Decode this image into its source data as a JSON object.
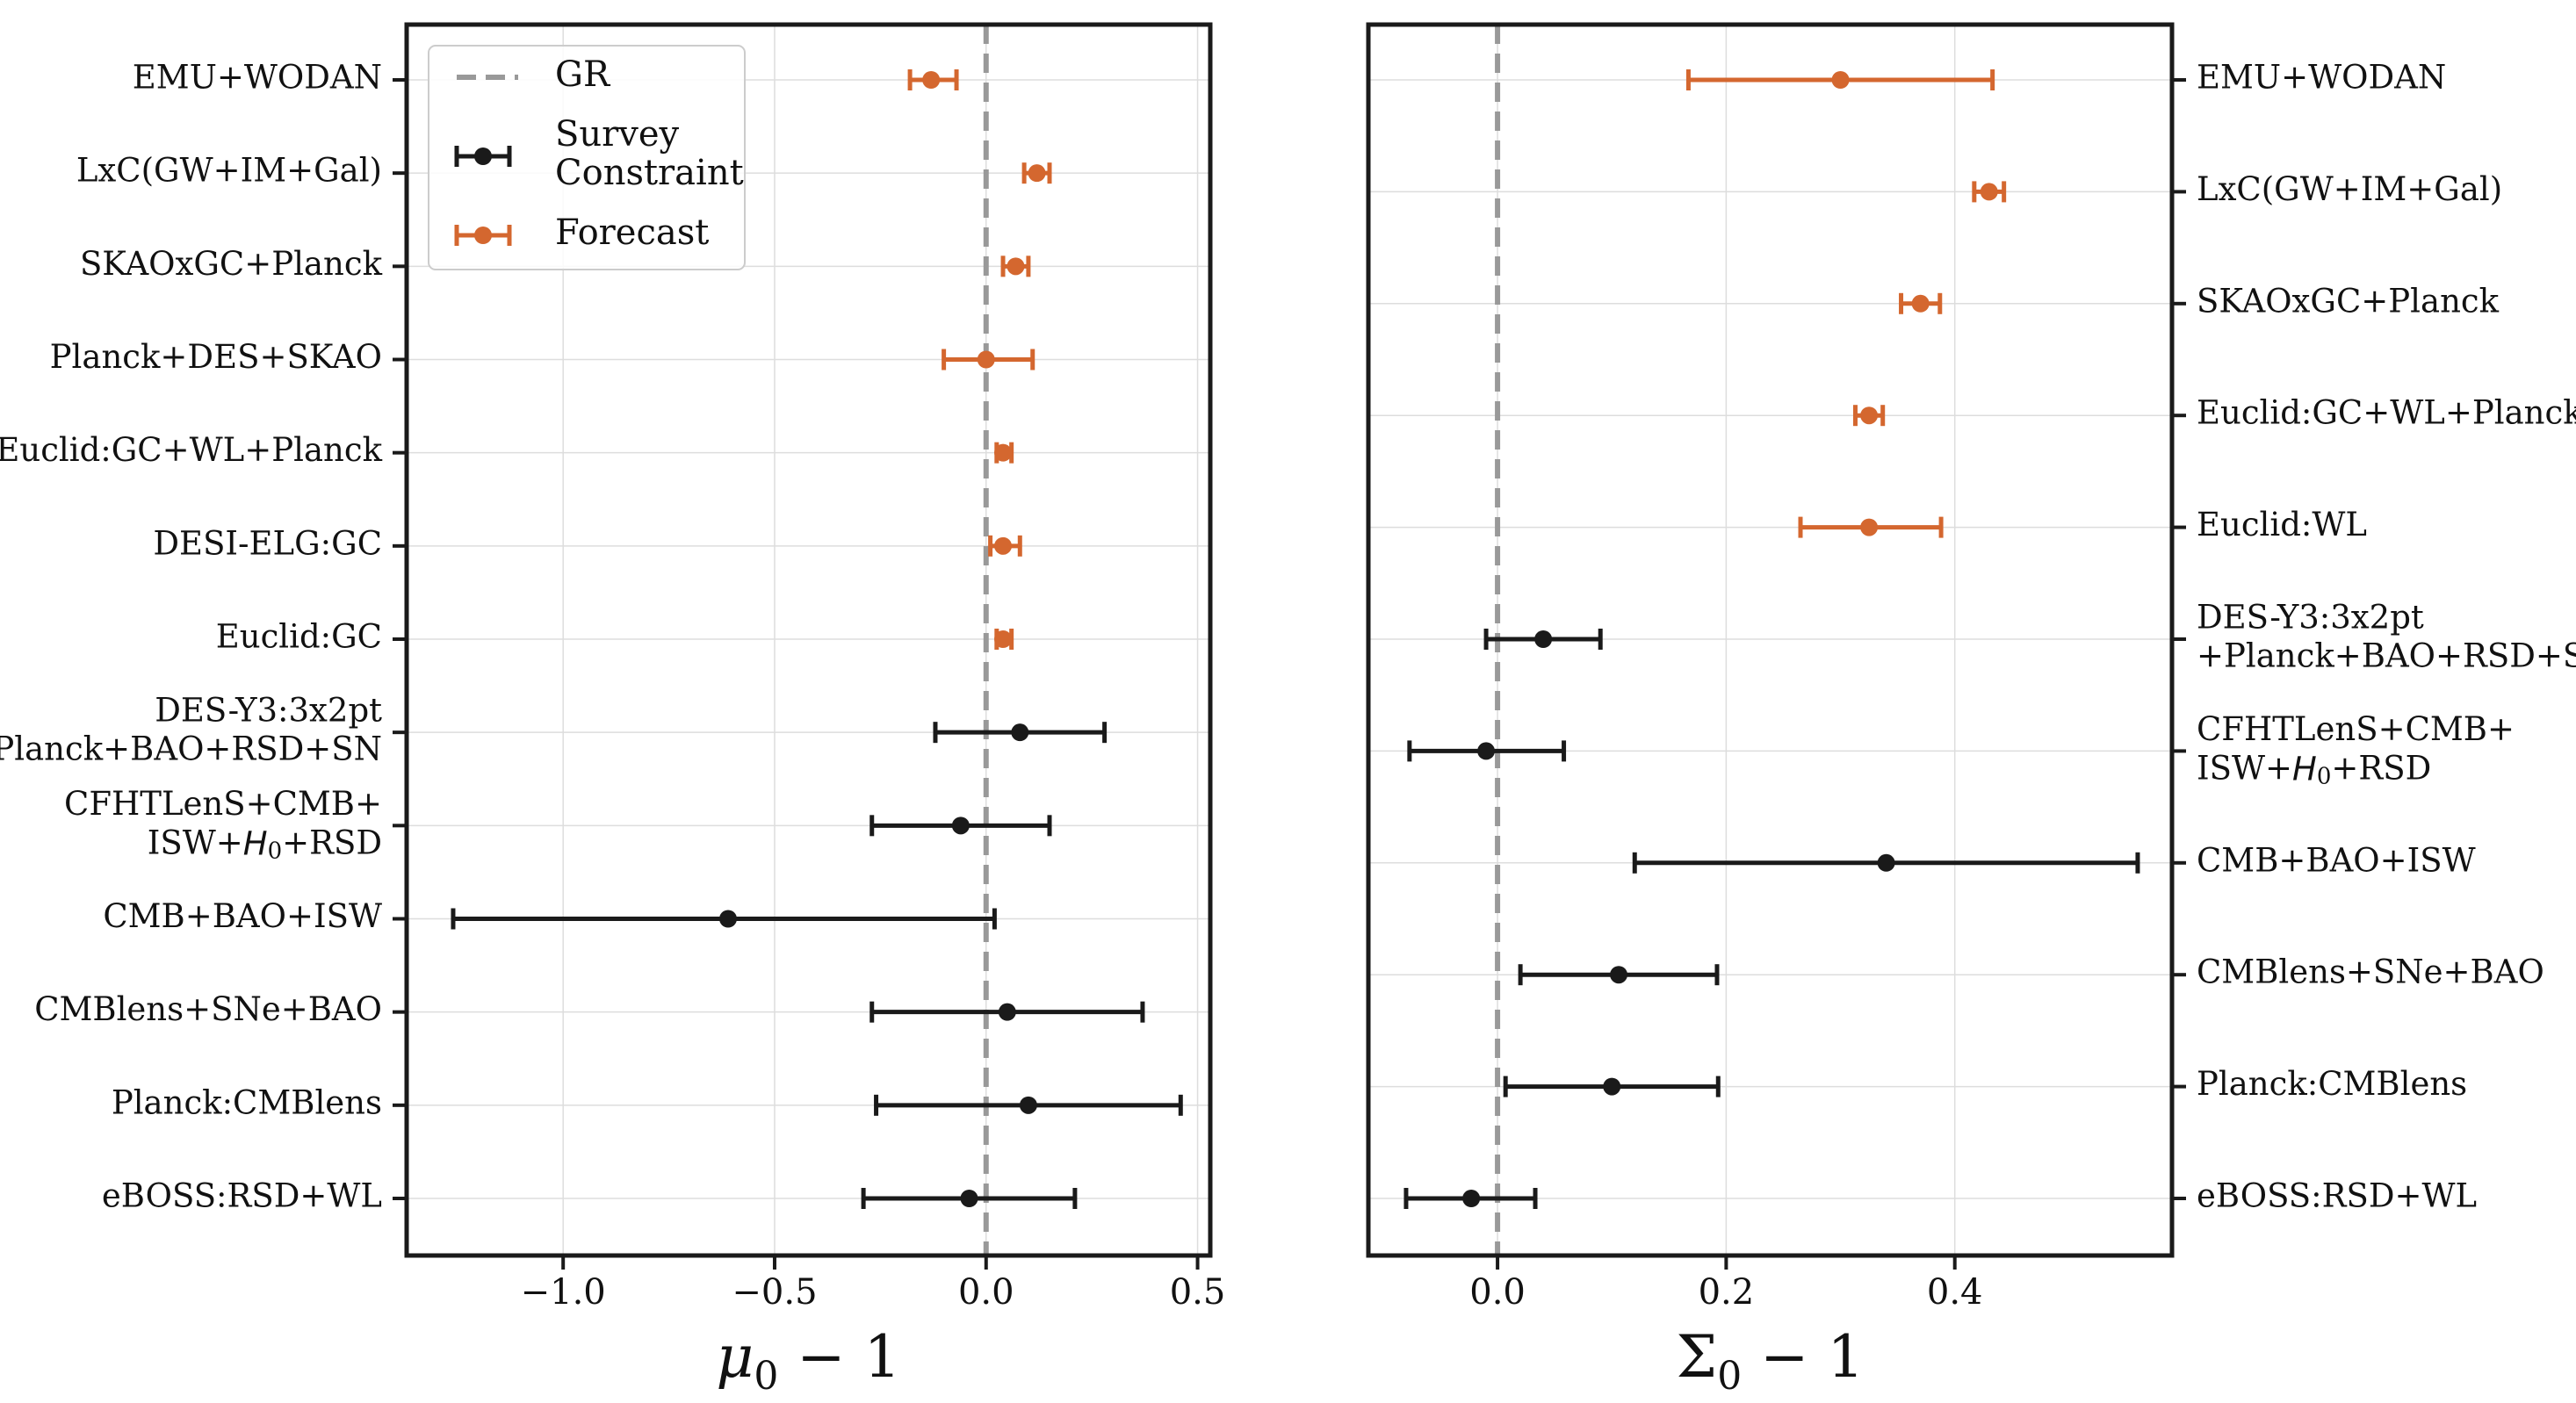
{
  "chart_data": [
    {
      "type": "errorbar",
      "xlabel": "μ₀ − 1",
      "xlabel_main": "μ",
      "xlabel_sub": "0",
      "xlabel_rest": " − 1",
      "xlim": [
        -1.37,
        0.53
      ],
      "xticks": [
        -1.0,
        -0.5,
        0.0,
        0.5
      ],
      "xtick_labels": [
        "−1.0",
        "−0.5",
        "0.0",
        "0.5"
      ],
      "reference_line": {
        "x": 0.0,
        "label": "GR"
      },
      "label_side": "left",
      "grid": true,
      "legend": {
        "position": "top-left",
        "entries": [
          {
            "key": "gr",
            "label": [
              "GR"
            ]
          },
          {
            "key": "survey",
            "label": [
              "Survey",
              "Constraint"
            ]
          },
          {
            "key": "forecast",
            "label": [
              "Forecast"
            ]
          }
        ]
      },
      "rows": [
        {
          "label": [
            "EMU+WODAN"
          ],
          "value": -0.13,
          "lo": -0.18,
          "hi": -0.07,
          "kind": "forecast"
        },
        {
          "label": [
            "LxC(GW+IM+Gal)"
          ],
          "value": 0.12,
          "lo": 0.09,
          "hi": 0.15,
          "kind": "forecast"
        },
        {
          "label": [
            "SKAOxGC+Planck"
          ],
          "value": 0.07,
          "lo": 0.04,
          "hi": 0.1,
          "kind": "forecast"
        },
        {
          "label": [
            "Planck+DES+SKAO"
          ],
          "value": 0.0,
          "lo": -0.1,
          "hi": 0.11,
          "kind": "forecast"
        },
        {
          "label": [
            "Euclid:GC+WL+Planck"
          ],
          "value": 0.04,
          "lo": 0.025,
          "hi": 0.06,
          "kind": "forecast"
        },
        {
          "label": [
            "DESI-ELG:GC"
          ],
          "value": 0.04,
          "lo": 0.01,
          "hi": 0.08,
          "kind": "forecast"
        },
        {
          "label": [
            "Euclid:GC"
          ],
          "value": 0.04,
          "lo": 0.025,
          "hi": 0.06,
          "kind": "forecast"
        },
        {
          "label": [
            "DES-Y3:3x2pt",
            "+Planck+BAO+RSD+SN"
          ],
          "value": 0.08,
          "lo": -0.12,
          "hi": 0.28,
          "kind": "survey"
        },
        {
          "label": [
            "CFHTLenS+CMB+",
            "ISW+H0+RSD"
          ],
          "value": -0.06,
          "lo": -0.27,
          "hi": 0.15,
          "kind": "survey"
        },
        {
          "label": [
            "CMB+BAO+ISW"
          ],
          "value": -0.61,
          "lo": -1.26,
          "hi": 0.02,
          "kind": "survey"
        },
        {
          "label": [
            "CMBlens+SNe+BAO"
          ],
          "value": 0.05,
          "lo": -0.27,
          "hi": 0.37,
          "kind": "survey"
        },
        {
          "label": [
            "Planck:CMBlens"
          ],
          "value": 0.1,
          "lo": -0.26,
          "hi": 0.46,
          "kind": "survey"
        },
        {
          "label": [
            "eBOSS:RSD+WL"
          ],
          "value": -0.04,
          "lo": -0.29,
          "hi": 0.21,
          "kind": "survey"
        }
      ]
    },
    {
      "type": "errorbar",
      "xlabel": "Σ₀ − 1",
      "xlabel_main": "Σ",
      "xlabel_sub": "0",
      "xlabel_rest": " − 1",
      "xlim": [
        -0.113,
        0.59
      ],
      "xticks": [
        0.0,
        0.2,
        0.4
      ],
      "xtick_labels": [
        "0.0",
        "0.2",
        "0.4"
      ],
      "reference_line": {
        "x": 0.0,
        "label": "GR"
      },
      "label_side": "right",
      "grid": true,
      "rows": [
        {
          "label": [
            "EMU+WODAN"
          ],
          "value": 0.3,
          "lo": 0.167,
          "hi": 0.433,
          "kind": "forecast"
        },
        {
          "label": [
            "LxC(GW+IM+Gal)"
          ],
          "value": 0.43,
          "lo": 0.417,
          "hi": 0.443,
          "kind": "forecast"
        },
        {
          "label": [
            "SKAOxGC+Planck"
          ],
          "value": 0.37,
          "lo": 0.353,
          "hi": 0.387,
          "kind": "forecast"
        },
        {
          "label": [
            "Euclid:GC+WL+Planck"
          ],
          "value": 0.325,
          "lo": 0.313,
          "hi": 0.337,
          "kind": "forecast"
        },
        {
          "label": [
            "Euclid:WL"
          ],
          "value": 0.325,
          "lo": 0.265,
          "hi": 0.388,
          "kind": "forecast"
        },
        {
          "label": [
            "DES-Y3:3x2pt",
            "+Planck+BAO+RSD+SN"
          ],
          "value": 0.04,
          "lo": -0.01,
          "hi": 0.09,
          "kind": "survey"
        },
        {
          "label": [
            "CFHTLenS+CMB+",
            "ISW+H0+RSD"
          ],
          "value": -0.01,
          "lo": -0.077,
          "hi": 0.058,
          "kind": "survey"
        },
        {
          "label": [
            "CMB+BAO+ISW"
          ],
          "value": 0.34,
          "lo": 0.12,
          "hi": 0.56,
          "kind": "survey"
        },
        {
          "label": [
            "CMBlens+SNe+BAO"
          ],
          "value": 0.106,
          "lo": 0.02,
          "hi": 0.192,
          "kind": "survey"
        },
        {
          "label": [
            "Planck:CMBlens"
          ],
          "value": 0.1,
          "lo": 0.007,
          "hi": 0.193,
          "kind": "survey"
        },
        {
          "label": [
            "eBOSS:RSD+WL"
          ],
          "value": -0.023,
          "lo": -0.08,
          "hi": 0.033,
          "kind": "survey"
        }
      ]
    }
  ],
  "colors": {
    "forecast": "#d4672f",
    "survey": "#1a1a1a",
    "gr_line": "#999999",
    "grid": "#dddddd",
    "axes": "#1a1a1a"
  }
}
